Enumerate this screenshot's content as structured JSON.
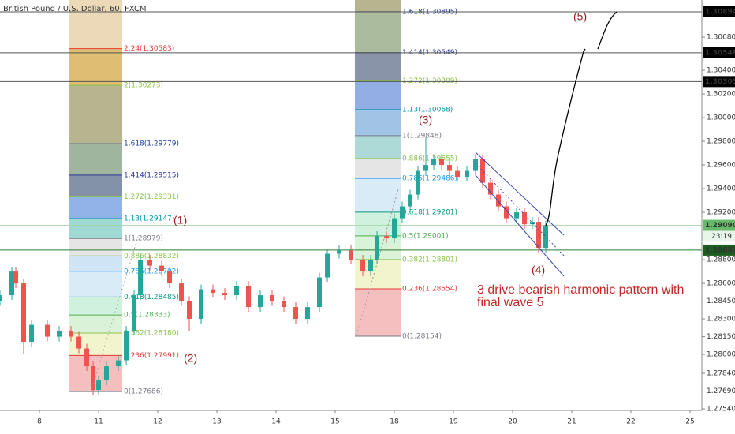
{
  "chart_data": {
    "type": "candlestick",
    "title": "British Pound / U.S. Dollar, 60, FXCM",
    "up_color": "#26a69a",
    "down_color": "#ef5350",
    "x": [
      -0.667,
      -0.467,
      -0.4,
      -0.267,
      -0.133,
      0.133,
      0.333,
      0.533,
      0.667,
      0.8,
      0.907,
      1.0,
      1.133,
      1.333,
      1.467,
      1.6,
      1.707,
      1.867,
      2.067,
      2.2,
      2.4,
      2.533,
      2.733,
      2.933,
      3.133,
      3.333,
      3.533,
      3.733,
      3.933,
      4.133,
      4.333,
      4.533,
      4.733,
      4.867,
      5.067,
      5.267,
      5.467,
      5.6,
      5.707,
      5.867,
      6.0,
      6.133,
      6.267,
      6.4,
      6.533,
      6.667,
      6.8,
      6.933,
      7.067,
      7.227,
      7.373,
      7.493,
      7.627,
      7.76,
      7.893,
      8.067,
      8.2,
      8.333,
      8.44,
      8.56
    ],
    "ohlc": [
      [
        1.2845,
        1.2854,
        1.2841,
        1.285
      ],
      [
        1.285,
        1.2874,
        1.2846,
        1.287
      ],
      [
        1.287,
        1.2874,
        1.2856,
        1.286
      ],
      [
        1.286,
        1.2864,
        1.28,
        1.281
      ],
      [
        1.281,
        1.2829,
        1.2806,
        1.2825
      ],
      [
        1.2825,
        1.2829,
        1.2811,
        1.2815
      ],
      [
        1.2815,
        1.2824,
        1.2811,
        1.282
      ],
      [
        1.282,
        1.2824,
        1.2811,
        1.2815
      ],
      [
        1.2815,
        1.2819,
        1.2801,
        1.2805
      ],
      [
        1.2805,
        1.2809,
        1.2786,
        1.279
      ],
      [
        1.279,
        1.2794,
        1.2766,
        1.277
      ],
      [
        1.277,
        1.2782,
        1.2766,
        1.2778
      ],
      [
        1.2778,
        1.2794,
        1.2774,
        1.279
      ],
      [
        1.279,
        1.2799,
        1.2786,
        1.2795
      ],
      [
        1.2795,
        1.2824,
        1.2791,
        1.282
      ],
      [
        1.282,
        1.2854,
        1.2816,
        1.285
      ],
      [
        1.285,
        1.2884,
        1.2846,
        1.288
      ],
      [
        1.288,
        1.2884,
        1.2871,
        1.2875
      ],
      [
        1.2875,
        1.2879,
        1.2866,
        1.287
      ],
      [
        1.287,
        1.2874,
        1.2856,
        1.286
      ],
      [
        1.286,
        1.2864,
        1.2841,
        1.2845
      ],
      [
        1.2845,
        1.2849,
        1.282,
        1.283
      ],
      [
        1.283,
        1.2859,
        1.2826,
        1.2855
      ],
      [
        1.2855,
        1.2859,
        1.2848,
        1.2852
      ],
      [
        1.2852,
        1.2856,
        1.2846,
        1.285
      ],
      [
        1.285,
        1.2862,
        1.2846,
        1.2858
      ],
      [
        1.2858,
        1.2862,
        1.2836,
        1.284
      ],
      [
        1.284,
        1.2854,
        1.2836,
        1.285
      ],
      [
        1.285,
        1.2854,
        1.2841,
        1.2845
      ],
      [
        1.2845,
        1.2849,
        1.2836,
        1.284
      ],
      [
        1.284,
        1.2844,
        1.2826,
        1.283
      ],
      [
        1.283,
        1.2844,
        1.2826,
        1.284
      ],
      [
        1.284,
        1.2869,
        1.2836,
        1.2865
      ],
      [
        1.2865,
        1.2889,
        1.2861,
        1.2885
      ],
      [
        1.2885,
        1.2892,
        1.2881,
        1.2888
      ],
      [
        1.2888,
        1.2892,
        1.2876,
        1.288
      ],
      [
        1.288,
        1.2884,
        1.2866,
        1.287
      ],
      [
        1.287,
        1.2884,
        1.2866,
        1.288
      ],
      [
        1.288,
        1.2904,
        1.2876,
        1.29
      ],
      [
        1.29,
        1.2904,
        1.2894,
        1.2898
      ],
      [
        1.2898,
        1.2919,
        1.2894,
        1.2915
      ],
      [
        1.2915,
        1.2929,
        1.2911,
        1.2925
      ],
      [
        1.2925,
        1.2939,
        1.2921,
        1.2935
      ],
      [
        1.2935,
        1.2959,
        1.2931,
        1.2955
      ],
      [
        1.2955,
        1.2984,
        1.2951,
        1.296
      ],
      [
        1.296,
        1.2969,
        1.2956,
        1.2965
      ],
      [
        1.2965,
        1.2969,
        1.2956,
        1.296
      ],
      [
        1.296,
        1.2964,
        1.2951,
        1.2955
      ],
      [
        1.2955,
        1.2959,
        1.2946,
        1.295
      ],
      [
        1.295,
        1.2959,
        1.2946,
        1.2955
      ],
      [
        1.2955,
        1.2969,
        1.2951,
        1.2965
      ],
      [
        1.2965,
        1.2969,
        1.2941,
        1.2945
      ],
      [
        1.2945,
        1.2949,
        1.2931,
        1.2935
      ],
      [
        1.2935,
        1.2939,
        1.2921,
        1.2925
      ],
      [
        1.2925,
        1.2929,
        1.2911,
        1.2915
      ],
      [
        1.2915,
        1.2924,
        1.2911,
        1.292
      ],
      [
        1.292,
        1.2924,
        1.2906,
        1.291
      ],
      [
        1.291,
        1.2916,
        1.2906,
        1.2912
      ],
      [
        1.2912,
        1.2916,
        1.2886,
        1.289
      ],
      [
        1.289,
        1.2913,
        1.2886,
        1.2909
      ]
    ],
    "xlim": [
      -0.667,
      11.2
    ],
    "ylim": [
      1.27527,
      1.30994
    ],
    "xticks": [
      {
        "value": 0,
        "label": "8"
      },
      {
        "value": 1,
        "label": "11"
      },
      {
        "value": 2,
        "label": "12"
      },
      {
        "value": 3,
        "label": "13"
      },
      {
        "value": 4,
        "label": "14"
      },
      {
        "value": 5,
        "label": "15"
      },
      {
        "value": 6,
        "label": "18"
      },
      {
        "value": 7,
        "label": "19"
      },
      {
        "value": 8,
        "label": "20"
      },
      {
        "value": 9,
        "label": "21"
      },
      {
        "value": 10,
        "label": "22"
      },
      {
        "value": 11,
        "label": "25"
      }
    ],
    "yticks": [
      {
        "value": 1.2754,
        "label": "1.27540"
      },
      {
        "value": 1.2769,
        "label": "1.27690"
      },
      {
        "value": 1.2784,
        "label": "1.27840"
      },
      {
        "value": 1.28,
        "label": "1.28000"
      },
      {
        "value": 1.2815,
        "label": "1.28150"
      },
      {
        "value": 1.283,
        "label": "1.28300"
      },
      {
        "value": 1.2845,
        "label": "1.28450"
      },
      {
        "value": 1.286,
        "label": "1.28600"
      },
      {
        "value": 1.288,
        "label": "1.28800"
      },
      {
        "value": 1.292,
        "label": "1.29200"
      },
      {
        "value": 1.294,
        "label": "1.29400"
      },
      {
        "value": 1.296,
        "label": "1.29600"
      },
      {
        "value": 1.298,
        "label": "1.29800"
      },
      {
        "value": 1.3,
        "label": "1.30000"
      },
      {
        "value": 1.302,
        "label": "1.30200"
      },
      {
        "value": 1.304,
        "label": "1.30400"
      },
      {
        "value": 1.3068,
        "label": "1.30680"
      }
    ],
    "price_lines": [
      {
        "value": 1.30894,
        "label": "1.30894",
        "color": "#555",
        "tag": "#000"
      },
      {
        "value": 1.30548,
        "label": "1.30548",
        "color": "#555",
        "tag": "#000"
      },
      {
        "value": 1.30305,
        "label": "1.30305",
        "color": "#555",
        "tag": "#000"
      },
      {
        "value": 1.2909,
        "label": "1.29090",
        "color": "#a5d6a7",
        "tag": "#66bb6a"
      },
      {
        "value": 1.28881,
        "label": "1.28881",
        "color": "#2e7d32",
        "tag": "#1b5e20"
      }
    ],
    "countdown": "23:19",
    "fibs": [
      {
        "x_range": [
          0.507,
          1.4
        ],
        "levels": [
          {
            "value": 1.27686,
            "label": "0(1.27686)",
            "color": "#787b86",
            "fill": "#f4b4b4"
          },
          {
            "value": 1.27991,
            "label": "0.236(1.27991)",
            "color": "#e53935",
            "fill": "#eef2c4"
          },
          {
            "value": 1.2818,
            "label": "0.382(1.28180)",
            "color": "#8bc34a",
            "fill": "#d4f0d0"
          },
          {
            "value": 1.28333,
            "label": "0.5(1.28333)",
            "color": "#4caf50",
            "fill": "#c8efd8"
          },
          {
            "value": 1.28485,
            "label": "0.618(1.28485)",
            "color": "#089981",
            "fill": "#d3e8f7"
          },
          {
            "value": 1.28702,
            "label": "0.786(1.28702)",
            "color": "#2196f3",
            "fill": "#c7dff2"
          },
          {
            "value": 1.28832,
            "label": "0.886(1.28832)",
            "color": "#8bc34a",
            "fill": "#e0e0e0"
          },
          {
            "value": 1.28979,
            "label": "1(1.28979)",
            "color": "#787b86",
            "fill": "#8fd1cc"
          },
          {
            "value": 1.29147,
            "label": "1.13(1.29147)",
            "color": "#0097a7",
            "fill": "#7fa6e2"
          },
          {
            "value": 1.29331,
            "label": "1.272(1.29331)",
            "color": "#8bc34a",
            "fill": "#6f7f9a"
          },
          {
            "value": 1.29515,
            "label": "1.414(1.29515)",
            "color": "#283593",
            "fill": "#8fa88c"
          },
          {
            "value": 1.29779,
            "label": "1.618(1.29779)",
            "color": "#1e3f9a",
            "fill": "#aaa77c"
          },
          {
            "value": 1.30273,
            "label": "2(1.30273)",
            "color": "#8bc34a",
            "fill": "#d8b35a"
          },
          {
            "value": 1.30583,
            "label": "2.24(1.30583)",
            "color": "#e53935",
            "fill": "#e8d2ac"
          }
        ]
      },
      {
        "x_range": [
          5.333,
          6.107
        ],
        "levels": [
          {
            "value": 1.28154,
            "label": "0(1.28154)",
            "color": "#787b86",
            "fill": "#f4b4b4"
          },
          {
            "value": 1.28554,
            "label": "0.236(1.28554)",
            "color": "#e53935",
            "fill": "#eef2c4"
          },
          {
            "value": 1.28801,
            "label": "0.382(1.28801)",
            "color": "#8bc34a",
            "fill": "#d4f0d0"
          },
          {
            "value": 1.29001,
            "label": "0.5(1.29001)",
            "color": "#4caf50",
            "fill": "#c8efd8"
          },
          {
            "value": 1.29201,
            "label": "0.618(1.29201)",
            "color": "#089981",
            "fill": "#d3e8f7"
          },
          {
            "value": 1.29486,
            "label": "0.786(1.29486)",
            "color": "#2196f3",
            "fill": "#e0e0e0"
          },
          {
            "value": 1.29655,
            "label": "0.886(1.29655)",
            "color": "#8bc34a",
            "fill": "#9fd4cf"
          },
          {
            "value": 1.29848,
            "label": "1(1.29848)",
            "color": "#787b86",
            "fill": "#8fb8e2"
          },
          {
            "value": 1.30068,
            "label": "1.13(1.30068)",
            "color": "#0097a7",
            "fill": "#7fa0e0"
          },
          {
            "value": 1.30309,
            "label": "1.272(1.30309)",
            "color": "#8bc34a",
            "fill": "#76819a"
          },
          {
            "value": 1.30549,
            "label": "1.414(1.30549)",
            "color": "#283593",
            "fill": "#9bb08c"
          },
          {
            "value": 1.30895,
            "label": "1.618(1.30895)",
            "color": "#1e3f9a",
            "fill": "#aaa77c"
          }
        ]
      }
    ],
    "annotations": [
      "(1)",
      "(2)",
      "(3)",
      "(4)",
      "(5)"
    ],
    "note": [
      "3 drive bearish harmonic pattern with",
      "final wave 5"
    ]
  }
}
